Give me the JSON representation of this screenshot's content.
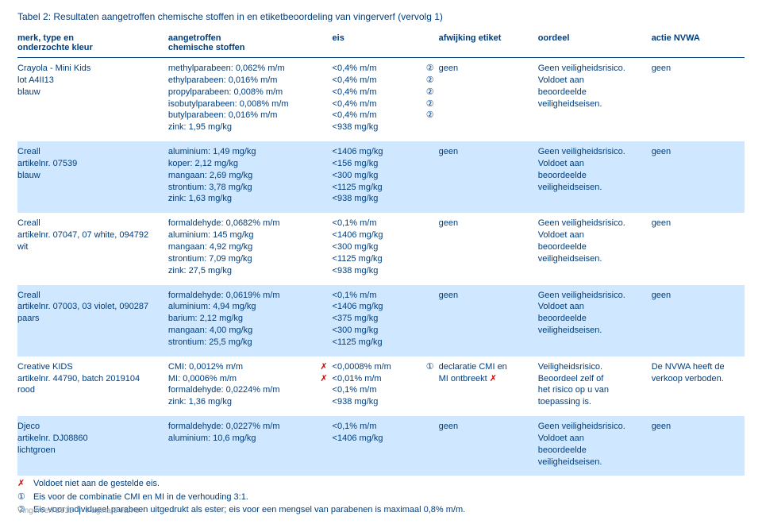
{
  "title": "Tabel 2: Resultaten aangetroffen chemische stoffen in en etiketbeoordeling van vingerverf (vervolg 1)",
  "columns": {
    "c0a": "merk, type en",
    "c0b": "onderzochte kleur",
    "c1a": "aangetroffen",
    "c1b": "chemische stoffen",
    "c2": "eis",
    "c3": "afwijking etiket",
    "c4": "oordeel",
    "c5": "actie NVWA"
  },
  "rows": [
    {
      "hl": false,
      "id": [
        "Crayola - Mini Kids",
        "lot A4II13",
        "blauw"
      ],
      "stoffen": [
        {
          "t": "methylparabeen: 0,062% m/m",
          "s": ""
        },
        {
          "t": "ethylparabeen: 0,016% m/m",
          "s": ""
        },
        {
          "t": "propylparabeen: 0,008% m/m",
          "s": ""
        },
        {
          "t": "isobutylparabeen: 0,008% m/m",
          "s": ""
        },
        {
          "t": "butylparabeen: 0,016% m/m",
          "s": ""
        },
        {
          "t": "zink: 1,95 mg/kg",
          "s": ""
        }
      ],
      "eis": [
        {
          "t": "<0,4% m/m",
          "s": "②"
        },
        {
          "t": "<0,4% m/m",
          "s": "②"
        },
        {
          "t": "<0,4% m/m",
          "s": "②"
        },
        {
          "t": "<0,4% m/m",
          "s": "②"
        },
        {
          "t": "<0,4% m/m",
          "s": "②"
        },
        {
          "t": "<938 mg/kg",
          "s": ""
        }
      ],
      "afw": [
        "geen"
      ],
      "oordeel": [
        "Geen veiligheidsrisico.",
        "Voldoet aan",
        "beoordeelde",
        "veiligheidseisen."
      ],
      "actie": [
        "geen"
      ]
    },
    {
      "hl": true,
      "id": [
        "Creall",
        "artikelnr. 07539",
        "blauw"
      ],
      "stoffen": [
        {
          "t": "aluminium: 1,49 mg/kg",
          "s": ""
        },
        {
          "t": "koper: 2,12 mg/kg",
          "s": ""
        },
        {
          "t": "mangaan: 2,69 mg/kg",
          "s": ""
        },
        {
          "t": "strontium: 3,78 mg/kg",
          "s": ""
        },
        {
          "t": "zink: 1,63 mg/kg",
          "s": ""
        }
      ],
      "eis": [
        {
          "t": "<1406 mg/kg",
          "s": ""
        },
        {
          "t": "<156 mg/kg",
          "s": ""
        },
        {
          "t": "<300 mg/kg",
          "s": ""
        },
        {
          "t": "<1125 mg/kg",
          "s": ""
        },
        {
          "t": "<938 mg/kg",
          "s": ""
        }
      ],
      "afw": [
        "geen"
      ],
      "oordeel": [
        "Geen veiligheidsrisico.",
        "Voldoet aan",
        "beoordeelde",
        "veiligheidseisen."
      ],
      "actie": [
        "geen"
      ]
    },
    {
      "hl": false,
      "id": [
        "Creall",
        "artikelnr. 07047, 07 white, 094792",
        "wit"
      ],
      "stoffen": [
        {
          "t": "formaldehyde: 0,0682% m/m",
          "s": ""
        },
        {
          "t": "aluminium: 145 mg/kg",
          "s": ""
        },
        {
          "t": "mangaan: 4,92 mg/kg",
          "s": ""
        },
        {
          "t": "strontium: 7,09 mg/kg",
          "s": ""
        },
        {
          "t": "zink: 27,5 mg/kg",
          "s": ""
        }
      ],
      "eis": [
        {
          "t": "<0,1% m/m",
          "s": ""
        },
        {
          "t": "<1406 mg/kg",
          "s": ""
        },
        {
          "t": "<300 mg/kg",
          "s": ""
        },
        {
          "t": "<1125 mg/kg",
          "s": ""
        },
        {
          "t": "<938 mg/kg",
          "s": ""
        }
      ],
      "afw": [
        "geen"
      ],
      "oordeel": [
        "Geen veiligheidsrisico.",
        "Voldoet aan",
        "beoordeelde",
        "veiligheidseisen."
      ],
      "actie": [
        "geen"
      ]
    },
    {
      "hl": true,
      "id": [
        "Creall",
        "artikelnr. 07003, 03 violet, 090287",
        "paars"
      ],
      "stoffen": [
        {
          "t": "formaldehyde: 0,0619% m/m",
          "s": ""
        },
        {
          "t": "aluminium: 4,94 mg/kg",
          "s": ""
        },
        {
          "t": "barium: 2,12 mg/kg",
          "s": ""
        },
        {
          "t": "mangaan: 4,00 mg/kg",
          "s": ""
        },
        {
          "t": "strontium: 25,5 mg/kg",
          "s": ""
        }
      ],
      "eis": [
        {
          "t": "<0,1% m/m",
          "s": ""
        },
        {
          "t": "<1406 mg/kg",
          "s": ""
        },
        {
          "t": "<375 mg/kg",
          "s": ""
        },
        {
          "t": "<300 mg/kg",
          "s": ""
        },
        {
          "t": "<1125 mg/kg",
          "s": ""
        }
      ],
      "afw": [
        "geen"
      ],
      "oordeel": [
        "Geen veiligheidsrisico.",
        "Voldoet aan",
        "beoordeelde",
        "veiligheidseisen."
      ],
      "actie": [
        "geen"
      ]
    },
    {
      "hl": false,
      "id": [
        "Creative KIDS",
        "artikelnr. 44790, batch 2019104",
        "rood"
      ],
      "stoffen": [
        {
          "t": "CMI: 0,0012% m/m",
          "s": "✗"
        },
        {
          "t": "MI: 0,0006% m/m",
          "s": "✗"
        },
        {
          "t": "formaldehyde: 0,0224% m/m",
          "s": ""
        },
        {
          "t": "zink: 1,36 mg/kg",
          "s": ""
        }
      ],
      "eis": [
        {
          "t": "<0,0008% m/m",
          "s": "①"
        },
        {
          "t": "<0,01% m/m",
          "s": ""
        },
        {
          "t": "<0,1% m/m",
          "s": ""
        },
        {
          "t": "<938 mg/kg",
          "s": ""
        }
      ],
      "afw": [
        "declaratie CMI en",
        "MI ontbreekt ✗"
      ],
      "oordeel": [
        "Veiligheidsrisico.",
        "Beoordeel zelf of",
        "het risico op u van",
        "toepassing is."
      ],
      "actie": [
        "De NVWA heeft de",
        "verkoop verboden."
      ]
    },
    {
      "hl": true,
      "id": [
        "Djeco",
        "artikelnr. DJ08860",
        "lichtgroen"
      ],
      "stoffen": [
        {
          "t": "formaldehyde: 0,0227% m/m",
          "s": ""
        },
        {
          "t": "aluminium: 10,6 mg/kg",
          "s": ""
        }
      ],
      "eis": [
        {
          "t": "<0,1% m/m",
          "s": ""
        },
        {
          "t": "<1406 mg/kg",
          "s": ""
        }
      ],
      "afw": [
        "geen"
      ],
      "oordeel": [
        "Geen veiligheidsrisico.",
        "Voldoet aan",
        "beoordeelde",
        "veiligheidseisen."
      ],
      "actie": [
        "geen"
      ]
    }
  ],
  "notes": [
    {
      "k": "✗",
      "t": "Voldoet niet aan de gestelde eis."
    },
    {
      "k": "①",
      "t": "Eis voor de combinatie CMI en MI in de verhouding 3:1."
    },
    {
      "k": "②",
      "t": "Eis voor individueel parabeen uitgedrukt als ester; eis voor een mengsel van parabenen is maximaal 0,8% m/m."
    }
  ],
  "footer": {
    "left": "Vingerverf 2015",
    "right": "Pagina 5 van 8"
  },
  "colors": {
    "text": "#003e7e",
    "highlight": "#cfe8ff",
    "fail": "#d40000",
    "footer": "#9aa4ad"
  }
}
